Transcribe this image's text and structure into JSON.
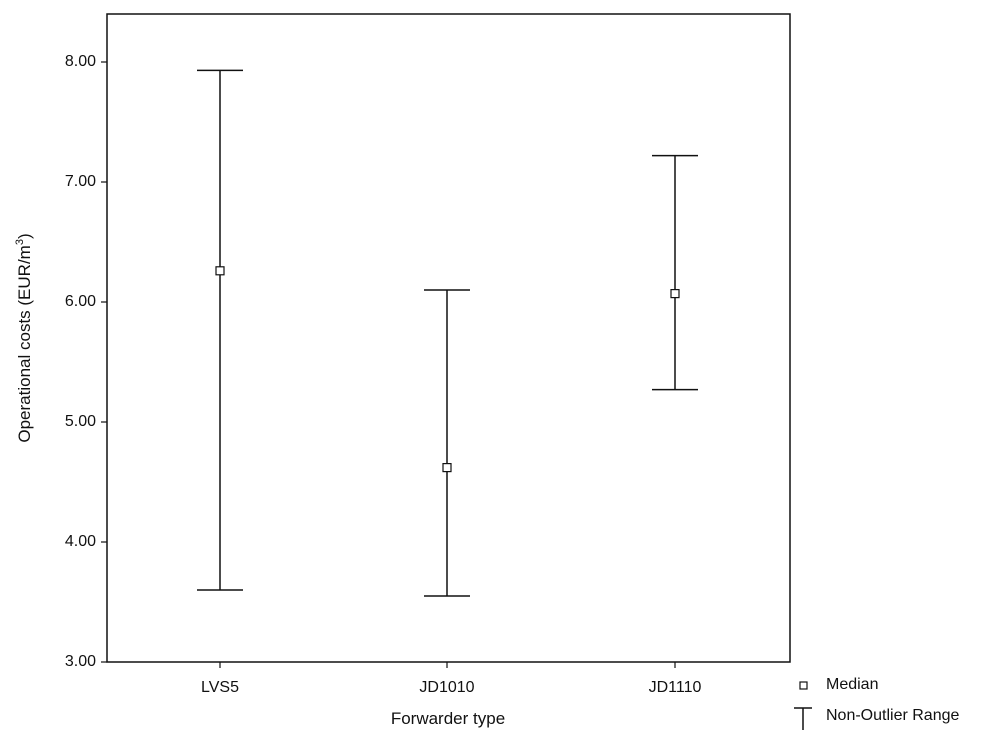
{
  "chart_data": {
    "type": "errorbar",
    "title": "",
    "xlabel": "Forwarder type",
    "ylabel_main": "Operational costs (EUR/m",
    "ylabel_sup": "3",
    "ylabel_close": ")",
    "ylim": [
      3.0,
      8.4
    ],
    "yticks": [
      "3.00",
      "4.00",
      "5.00",
      "6.00",
      "7.00",
      "8.00"
    ],
    "ytick_values": [
      3,
      4,
      5,
      6,
      7,
      8
    ],
    "categories": [
      "LVS5",
      "JD1010",
      "JD1110"
    ],
    "series": [
      {
        "category": "LVS5",
        "min": 3.6,
        "max": 7.93,
        "median": 6.26
      },
      {
        "category": "JD1010",
        "min": 3.55,
        "max": 6.1,
        "median": 4.62
      },
      {
        "category": "JD1110",
        "min": 5.27,
        "max": 7.22,
        "median": 6.07
      }
    ],
    "legend": {
      "placement": "bottom-right",
      "median_label": "Median",
      "range_label": "Non-Outlier Range"
    },
    "grid": false
  }
}
